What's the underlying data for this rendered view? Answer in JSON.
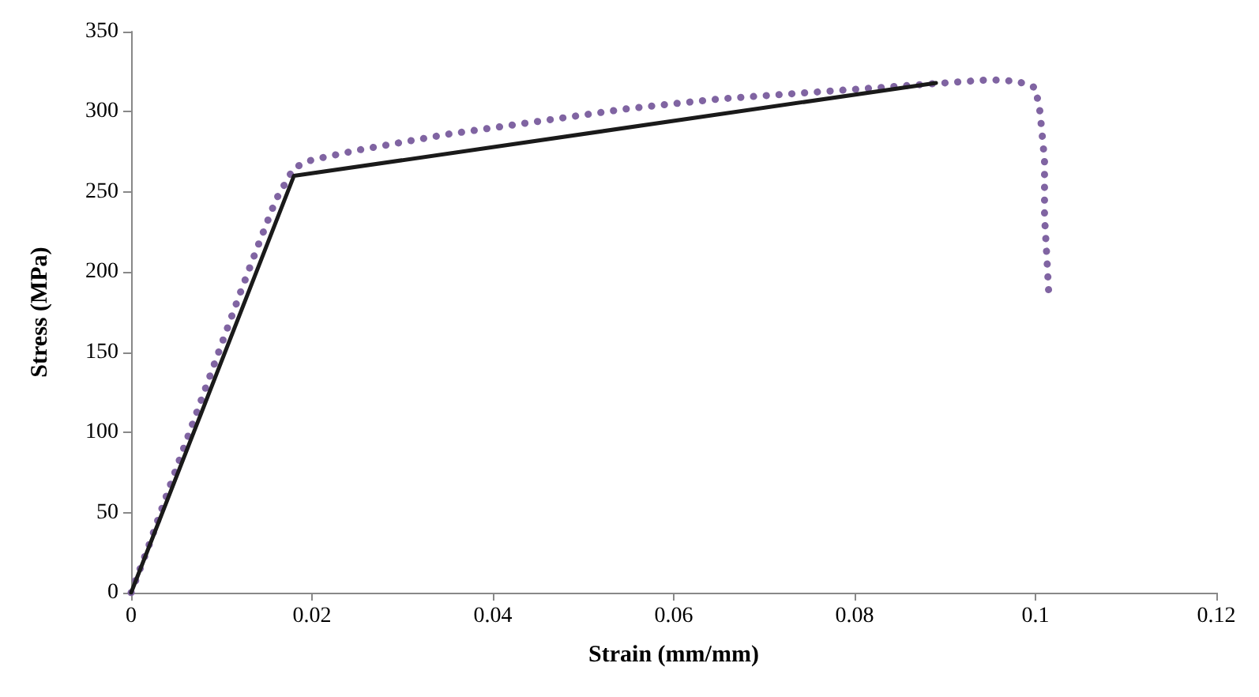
{
  "chart_data": {
    "type": "line",
    "xlabel": "Strain (mm/mm)",
    "ylabel": "Stress (MPa)",
    "xlim": [
      0,
      0.12
    ],
    "xticks": [
      0,
      0.02,
      0.04,
      0.06,
      0.08,
      0.1,
      0.12
    ],
    "ylim": [
      0,
      350
    ],
    "yticks": [
      0,
      50,
      100,
      150,
      200,
      250,
      300,
      350
    ],
    "grid": false,
    "marker": "none",
    "series": [
      {
        "color": "#8064a2",
        "line_style": "dotted",
        "x": [
          0,
          0.002,
          0.004,
          0.006,
          0.008,
          0.01,
          0.012,
          0.014,
          0.016,
          0.018,
          0.02,
          0.025,
          0.03,
          0.035,
          0.04,
          0.045,
          0.05,
          0.055,
          0.06,
          0.065,
          0.07,
          0.075,
          0.08,
          0.085,
          0.09,
          0.095,
          0.098,
          0.1,
          0.1005,
          0.101,
          0.101,
          0.1013,
          0.1015
        ],
        "values": [
          0,
          30,
          62,
          93,
          124,
          155,
          186,
          216,
          245,
          265,
          270,
          276,
          281,
          286,
          290,
          294,
          298,
          302,
          305,
          308,
          310,
          312,
          314,
          316,
          318,
          320,
          319,
          315,
          300,
          270,
          235,
          205,
          183
        ]
      },
      {
        "color": "#1a1a1a",
        "line_style": "solid",
        "x": [
          0,
          0.018,
          0.089
        ],
        "values": [
          0,
          260,
          318
        ]
      }
    ]
  }
}
